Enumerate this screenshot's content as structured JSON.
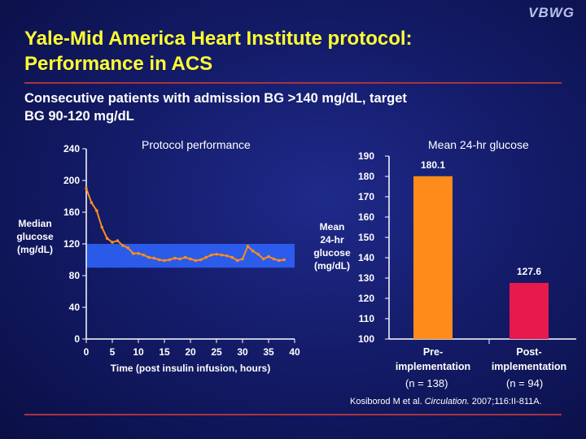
{
  "logo": "VBWG",
  "title_line1": "Yale-Mid America Heart Institute protocol:",
  "title_line2": "Performance in ACS",
  "subtitle_line1": "Consecutive patients with admission BG >140 mg/dL, target",
  "subtitle_line2": "BG 90-120 mg/dL",
  "colors": {
    "title": "#ffff33",
    "line": "#ff8c1a",
    "target_band": "#2f66ff",
    "bar_pre": "#ff8c1a",
    "bar_post": "#e8194d",
    "rule": "#a8343f"
  },
  "citation": {
    "authors": "Kosiborod M et al. ",
    "journal": "Circulation.",
    "details": " 2007;116:II-811A."
  },
  "chart_data": [
    {
      "type": "line",
      "title": "Protocol performance",
      "ylabel_lines": [
        "Median",
        "glucose",
        "(mg/dL)"
      ],
      "xlabel": "Time (post insulin infusion, hours)",
      "xlim": [
        0,
        40
      ],
      "ylim": [
        0,
        240
      ],
      "xticks": [
        "0",
        "5",
        "10",
        "15",
        "20",
        "25",
        "30",
        "35",
        "40"
      ],
      "yticks": [
        "0",
        "40",
        "80",
        "120",
        "160",
        "200",
        "240"
      ],
      "target_band": [
        90,
        120
      ],
      "x": [
        0,
        1,
        2,
        3,
        4,
        5,
        6,
        7,
        8,
        9,
        10,
        11,
        12,
        13,
        14,
        15,
        16,
        17,
        18,
        19,
        20,
        21,
        22,
        23,
        24,
        25,
        26,
        27,
        28,
        29,
        30,
        31,
        32,
        33,
        34,
        35,
        36,
        37,
        38
      ],
      "y": [
        190,
        172,
        162,
        141,
        127,
        122,
        124,
        118,
        115,
        108,
        108,
        106,
        103,
        102,
        100,
        99,
        100,
        102,
        101,
        103,
        101,
        99,
        100,
        103,
        106,
        107,
        106,
        105,
        103,
        99,
        101,
        117,
        111,
        107,
        101,
        104,
        101,
        99,
        100
      ]
    },
    {
      "type": "bar",
      "title": "Mean 24-hr glucose",
      "ylabel_lines": [
        "Mean",
        "24-hr",
        "glucose",
        "(mg/dL)"
      ],
      "ylim": [
        100,
        190
      ],
      "yticks": [
        "100",
        "110",
        "120",
        "130",
        "140",
        "150",
        "160",
        "170",
        "180",
        "190"
      ],
      "categories": [
        {
          "line1": "Pre-",
          "line2": "implementation",
          "n": "(n = 138)"
        },
        {
          "line1": "Post-",
          "line2": "implementation",
          "n": "(n = 94)"
        }
      ],
      "values": [
        180.1,
        127.6
      ],
      "value_labels": [
        "180.1",
        "127.6"
      ]
    }
  ]
}
